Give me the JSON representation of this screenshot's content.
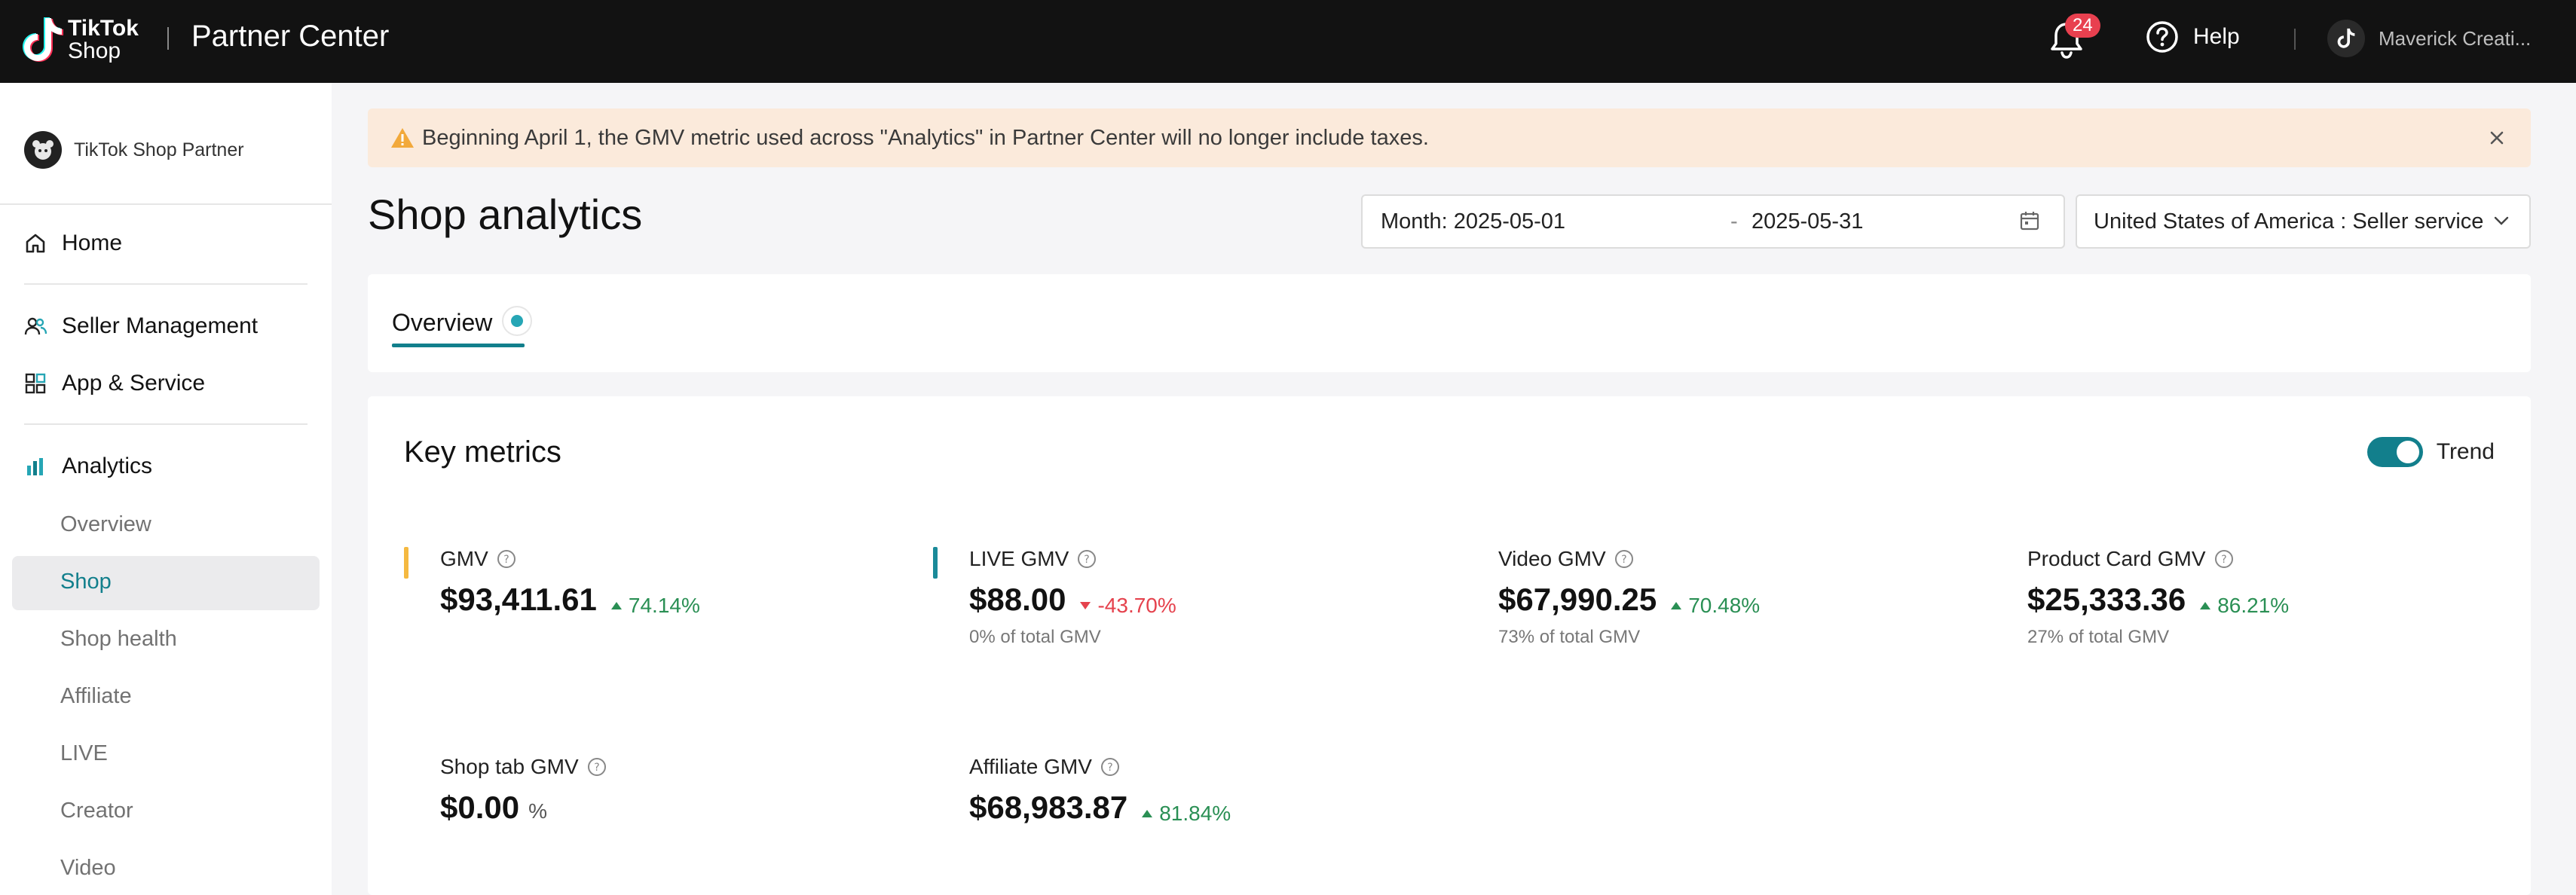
{
  "topbar": {
    "logo_line1": "TikTok",
    "logo_line2": "Shop",
    "title": "Partner Center",
    "notification_count": "24",
    "help_label": "Help",
    "account_name": "Maverick Creati..."
  },
  "sidebar": {
    "partner_name": "TikTok Shop Partner",
    "home": "Home",
    "seller_management": "Seller Management",
    "app_service": "App & Service",
    "analytics": "Analytics",
    "analytics_items": [
      "Overview",
      "Shop",
      "Shop health",
      "Affiliate",
      "LIVE",
      "Creator",
      "Video"
    ],
    "active_item": "Shop"
  },
  "banner": {
    "text": "Beginning April 1, the GMV metric used across \"Analytics\" in Partner Center will no longer include taxes."
  },
  "page": {
    "title": "Shop analytics",
    "date_start": "Month: 2025-05-01",
    "date_separator": "-",
    "date_end": "2025-05-31",
    "region": "United States of America : Seller service"
  },
  "tabs": {
    "overview": "Overview"
  },
  "key_metrics": {
    "title": "Key metrics",
    "trend_label": "Trend",
    "trend_on": true,
    "items": [
      {
        "label": "GMV",
        "value": "$93,411.61",
        "change": "74.14%",
        "direction": "up",
        "sub": "",
        "bar_color": "#f5b940"
      },
      {
        "label": "LIVE GMV",
        "value": "$88.00",
        "change": "-43.70%",
        "direction": "down",
        "sub": "0% of total GMV",
        "bar_color": "#1a8a99"
      },
      {
        "label": "Video GMV",
        "value": "$67,990.25",
        "change": "70.48%",
        "direction": "up",
        "sub": "73% of total GMV"
      },
      {
        "label": "Product Card GMV",
        "value": "$25,333.36",
        "change": "86.21%",
        "direction": "up",
        "sub": "27% of total GMV"
      },
      {
        "label": "Shop tab GMV",
        "value": "$0.00",
        "change": "%",
        "direction": "none",
        "sub": ""
      },
      {
        "label": "Affiliate GMV",
        "value": "$68,983.87",
        "change": "81.84%",
        "direction": "up",
        "sub": ""
      }
    ]
  },
  "colors": {
    "accent": "#127f8c",
    "up": "#2a8f54",
    "down": "#e5424d",
    "banner_bg": "#fbeadb"
  }
}
